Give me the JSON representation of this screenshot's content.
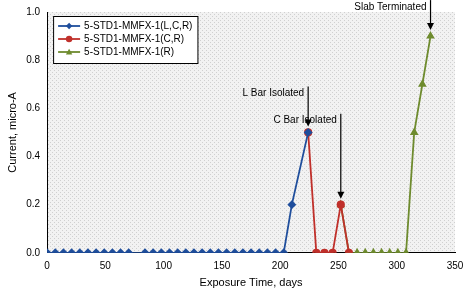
{
  "chart_data": {
    "type": "line",
    "x_label": "Exposure Time, days",
    "y_label": "Current, micro-A",
    "xlim": [
      0,
      350
    ],
    "xticks": [
      0,
      50,
      100,
      150,
      200,
      250,
      300,
      350
    ],
    "ylim": [
      0,
      1
    ],
    "yticks": [
      {
        "value": 0,
        "label": "0.0"
      },
      0.2,
      0.4,
      0.6,
      0.8,
      {
        "value": 1,
        "label": "1.0"
      }
    ],
    "grid": false,
    "legend": "upper left",
    "series": [
      {
        "name": "5-STD1-MMFX-1(L,C,R)",
        "color": "#1f4e9c",
        "marker": "diamond",
        "x": [
          0,
          7,
          14,
          21,
          28,
          35,
          42,
          49,
          56,
          63,
          70,
          84,
          91,
          98,
          105,
          112,
          119,
          126,
          133,
          140,
          147,
          154,
          161,
          168,
          175,
          182,
          189,
          196,
          203,
          210,
          224
        ],
        "values": [
          0,
          0,
          0,
          0,
          0,
          0,
          0,
          0,
          0,
          0,
          0,
          0,
          0,
          0,
          0,
          0,
          0,
          0,
          0,
          0,
          0,
          0,
          0,
          0,
          0,
          0,
          0,
          0,
          0,
          0.2,
          0.5
        ]
      },
      {
        "name": "5-STD1-MMFX-1(C,R)",
        "color": "#c0302b",
        "marker": "circle",
        "x": [
          224,
          231,
          238,
          245,
          252,
          259
        ],
        "values": [
          0.5,
          0,
          0,
          0,
          0.2,
          0
        ]
      },
      {
        "name": "5-STD1-MMFX-1(R)",
        "color": "#6e8b2e",
        "marker": "triangle",
        "x": [
          252,
          259,
          266,
          273,
          280,
          287,
          294,
          301,
          308,
          315,
          322,
          329
        ],
        "values": [
          0.2,
          0,
          0,
          0,
          0,
          0,
          0,
          0,
          0,
          0.5,
          0.7,
          0.9
        ]
      }
    ],
    "annotations": [
      {
        "text": "L Bar Isolated",
        "x": 224,
        "y": 0.5
      },
      {
        "text": "C Bar Isolated",
        "x": 252,
        "y": 0.2
      },
      {
        "text": "Slab Terminated",
        "x": 329,
        "y": 0.9
      }
    ]
  }
}
